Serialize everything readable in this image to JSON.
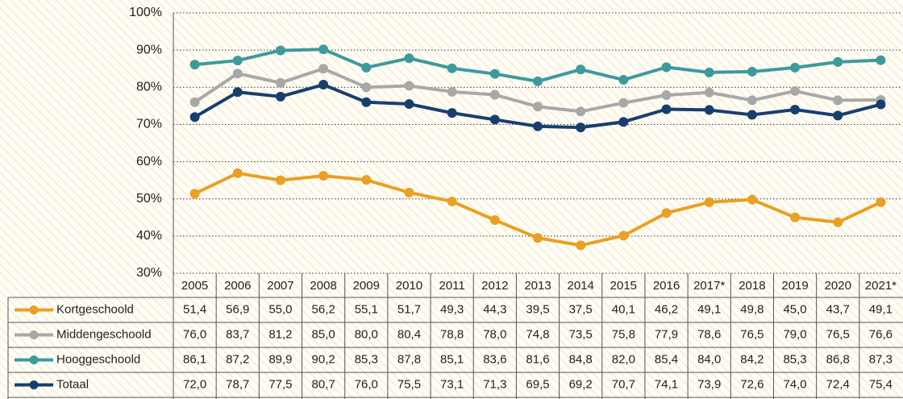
{
  "chart_data": {
    "type": "line",
    "categories": [
      "2005",
      "2006",
      "2007",
      "2008",
      "2009",
      "2010",
      "2011",
      "2012",
      "2013",
      "2014",
      "2015",
      "2016",
      "2017*",
      "2018",
      "2019",
      "2020",
      "2021*"
    ],
    "ylim": [
      30,
      100
    ],
    "yticks": [
      {
        "value": 30,
        "label": "30%"
      },
      {
        "value": 40,
        "label": "40%"
      },
      {
        "value": 50,
        "label": "50%"
      },
      {
        "value": 60,
        "label": "60%"
      },
      {
        "value": 70,
        "label": "70%"
      },
      {
        "value": 80,
        "label": "80%"
      },
      {
        "value": 90,
        "label": "90%"
      },
      {
        "value": 100,
        "label": "100%"
      }
    ],
    "grid": true,
    "series": [
      {
        "name": "Kortgeschoold",
        "color": "#e9a023",
        "values": [
          51.4,
          56.9,
          55.0,
          56.2,
          55.1,
          51.7,
          49.3,
          44.3,
          39.5,
          37.5,
          40.1,
          46.2,
          49.1,
          49.8,
          45.0,
          43.7,
          49.1
        ],
        "value_labels": [
          "51,4",
          "56,9",
          "55,0",
          "56,2",
          "55,1",
          "51,7",
          "49,3",
          "44,3",
          "39,5",
          "37,5",
          "40,1",
          "46,2",
          "49,1",
          "49,8",
          "45,0",
          "43,7",
          "49,1"
        ]
      },
      {
        "name": "Middengeschoold",
        "color": "#a8a8a8",
        "values": [
          76.0,
          83.7,
          81.2,
          85.0,
          80.0,
          80.4,
          78.8,
          78.0,
          74.8,
          73.5,
          75.8,
          77.9,
          78.6,
          76.5,
          79.0,
          76.5,
          76.6
        ],
        "value_labels": [
          "76,0",
          "83,7",
          "81,2",
          "85,0",
          "80,0",
          "80,4",
          "78,8",
          "78,0",
          "74,8",
          "73,5",
          "75,8",
          "77,9",
          "78,6",
          "76,5",
          "79,0",
          "76,5",
          "76,6"
        ]
      },
      {
        "name": "Hooggeschoold",
        "color": "#3d9a9d",
        "values": [
          86.1,
          87.2,
          89.9,
          90.2,
          85.3,
          87.8,
          85.1,
          83.6,
          81.6,
          84.8,
          82.0,
          85.4,
          84.0,
          84.2,
          85.3,
          86.8,
          87.3
        ],
        "value_labels": [
          "86,1",
          "87,2",
          "89,9",
          "90,2",
          "85,3",
          "87,8",
          "85,1",
          "83,6",
          "81,6",
          "84,8",
          "82,0",
          "85,4",
          "84,0",
          "84,2",
          "85,3",
          "86,8",
          "87,3"
        ]
      },
      {
        "name": "Totaal",
        "color": "#173f6e",
        "values": [
          72.0,
          78.7,
          77.5,
          80.7,
          76.0,
          75.5,
          73.1,
          71.3,
          69.5,
          69.2,
          70.7,
          74.1,
          73.9,
          72.6,
          74.0,
          72.4,
          75.4
        ],
        "value_labels": [
          "72,0",
          "78,7",
          "77,5",
          "80,7",
          "76,0",
          "75,5",
          "73,1",
          "71,3",
          "69,5",
          "69,2",
          "70,7",
          "74,1",
          "73,9",
          "72,6",
          "74,0",
          "72,4",
          "75,4"
        ]
      }
    ]
  }
}
